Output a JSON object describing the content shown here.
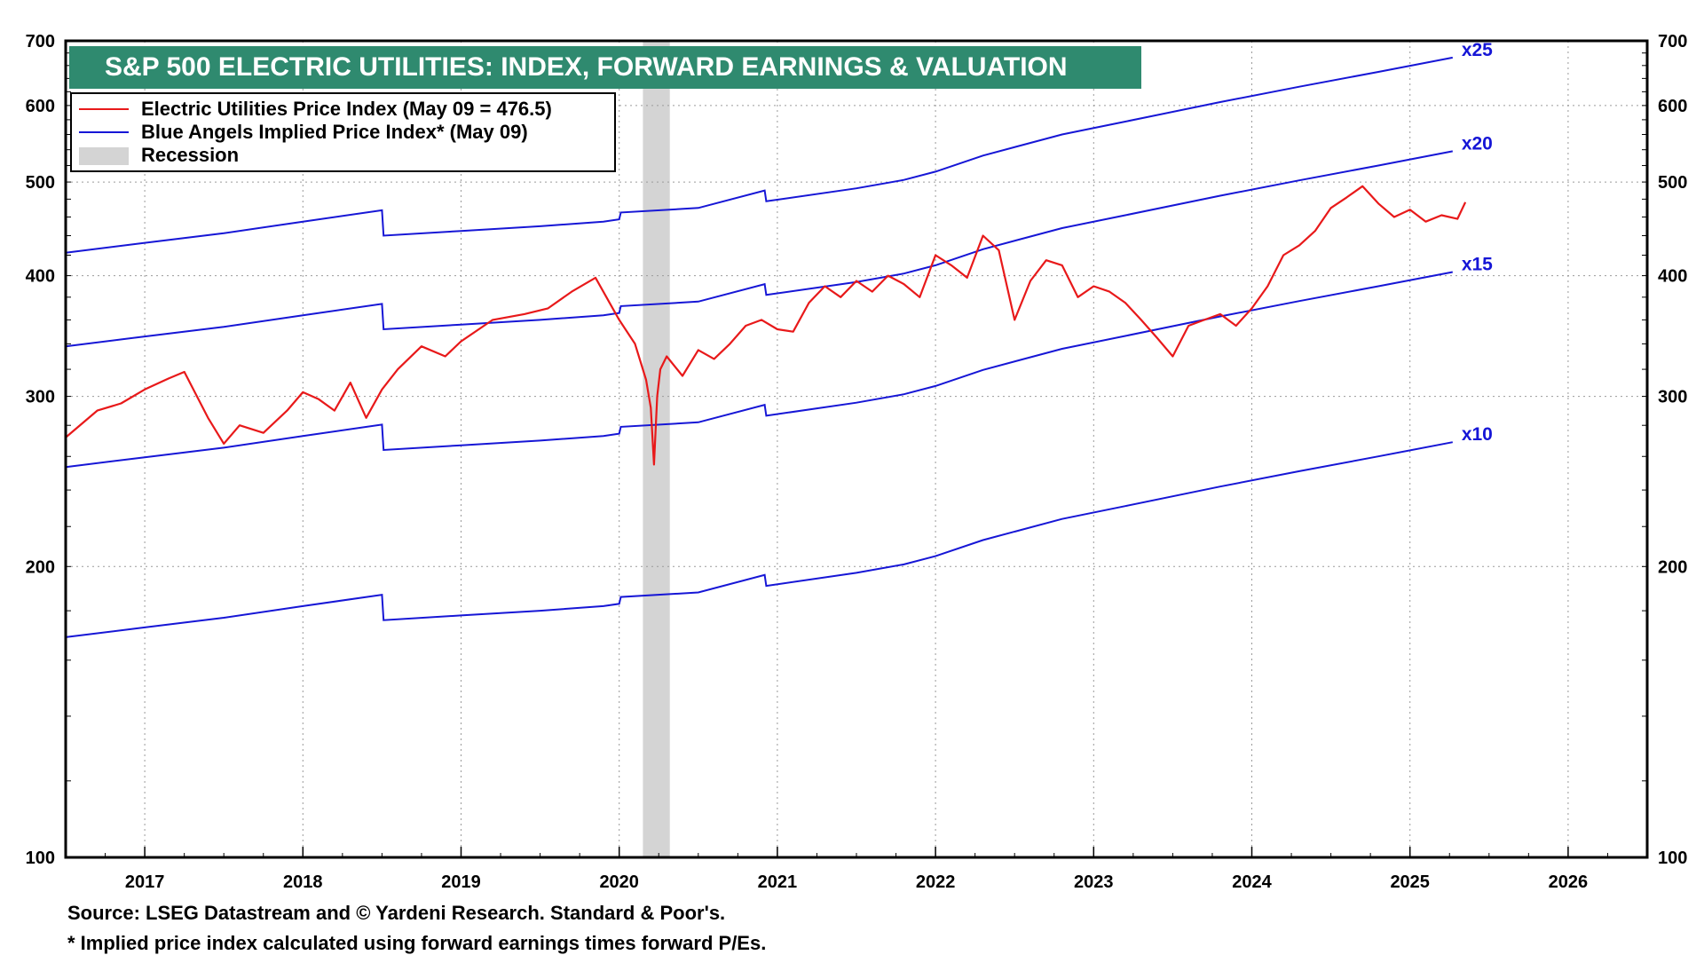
{
  "title": "S&P 500 ELECTRIC UTILITIES: INDEX, FORWARD EARNINGS & VALUATION",
  "legend": [
    {
      "label": "Electric Utilities Price Index (May 09 = 476.5)",
      "color": "#e8191a",
      "kind": "line"
    },
    {
      "label": "Blue Angels Implied Price Index* (May 09)",
      "color": "#1616d6",
      "kind": "line"
    },
    {
      "label": "Recession",
      "color": "#d4d4d4",
      "kind": "band"
    }
  ],
  "footnotes": [
    "Source: LSEG Datastream and © Yardeni Research. Standard & Poor's.",
    "* Implied price index calculated using forward earnings times forward P/Es."
  ],
  "chart_data": {
    "type": "line",
    "title": "S&P 500 ELECTRIC UTILITIES: INDEX, FORWARD EARNINGS & VALUATION",
    "xlabel": "",
    "ylabel": "",
    "y_scale": "log",
    "xlim": [
      2016.5,
      2026.5
    ],
    "ylim": [
      100,
      700
    ],
    "x_tick_labels": [
      "2017",
      "2018",
      "2019",
      "2020",
      "2021",
      "2022",
      "2023",
      "2024",
      "2025",
      "2026"
    ],
    "y_tick_labels": [
      "100",
      "200",
      "300",
      "400",
      "500",
      "600",
      "700"
    ],
    "y_ticks": [
      100,
      200,
      300,
      400,
      500,
      600,
      700
    ],
    "grid": true,
    "legend_position": "top-left",
    "recession": {
      "start": 2020.15,
      "end": 2020.32,
      "label": "Recession"
    },
    "forward_earnings": {
      "x": [
        2016.5,
        2017.0,
        2017.5,
        2018.0,
        2018.5,
        2018.51,
        2019.0,
        2019.5,
        2019.9,
        2020.0,
        2020.01,
        2020.5,
        2020.92,
        2020.93,
        2021.5,
        2021.8,
        2022.0,
        2022.3,
        2022.8,
        2023.2,
        2023.8,
        2024.3,
        2024.8,
        2025.27
      ],
      "y": [
        16.9,
        17.3,
        17.7,
        18.2,
        18.7,
        17.6,
        17.8,
        18.0,
        18.2,
        18.3,
        18.6,
        18.8,
        19.6,
        19.1,
        19.7,
        20.1,
        20.5,
        21.3,
        22.4,
        23.1,
        24.2,
        25.1,
        26.0,
        26.9
      ]
    },
    "multiples": [
      25,
      20,
      15,
      10
    ],
    "series": [
      {
        "name": "Electric Utilities Price Index (May 09 = 476.5)",
        "color": "#e8191a",
        "x": [
          2016.5,
          2016.7,
          2016.85,
          2017.0,
          2017.15,
          2017.25,
          2017.4,
          2017.5,
          2017.6,
          2017.75,
          2017.9,
          2018.0,
          2018.1,
          2018.2,
          2018.3,
          2018.4,
          2018.5,
          2018.6,
          2018.75,
          2018.9,
          2019.0,
          2019.2,
          2019.4,
          2019.55,
          2019.7,
          2019.85,
          2020.0,
          2020.1,
          2020.17,
          2020.2,
          2020.22,
          2020.24,
          2020.26,
          2020.3,
          2020.4,
          2020.5,
          2020.6,
          2020.7,
          2020.8,
          2020.9,
          2021.0,
          2021.1,
          2021.2,
          2021.3,
          2021.4,
          2021.5,
          2021.6,
          2021.7,
          2021.8,
          2021.9,
          2022.0,
          2022.1,
          2022.2,
          2022.3,
          2022.4,
          2022.5,
          2022.6,
          2022.7,
          2022.8,
          2022.9,
          2023.0,
          2023.1,
          2023.2,
          2023.3,
          2023.4,
          2023.5,
          2023.6,
          2023.7,
          2023.8,
          2023.9,
          2024.0,
          2024.1,
          2024.2,
          2024.3,
          2024.4,
          2024.5,
          2024.6,
          2024.7,
          2024.8,
          2024.9,
          2025.0,
          2025.1,
          2025.2,
          2025.3,
          2025.35
        ],
        "y": [
          272,
          290,
          295,
          305,
          313,
          318,
          285,
          268,
          280,
          275,
          290,
          303,
          298,
          290,
          310,
          285,
          305,
          320,
          338,
          330,
          342,
          360,
          365,
          370,
          385,
          398,
          360,
          340,
          312,
          292,
          255,
          300,
          320,
          330,
          315,
          335,
          328,
          340,
          355,
          360,
          352,
          350,
          375,
          390,
          380,
          395,
          385,
          400,
          392,
          380,
          420,
          410,
          398,
          440,
          425,
          360,
          395,
          415,
          410,
          380,
          390,
          385,
          375,
          360,
          345,
          330,
          355,
          360,
          365,
          355,
          370,
          390,
          420,
          430,
          445,
          470,
          482,
          495,
          475,
          460,
          468,
          455,
          462,
          458,
          476.5
        ]
      },
      {
        "name": "Blue Angels Implied Price Index* (May 09)",
        "color": "#1616d6",
        "multiple_labels": [
          "x25",
          "x20",
          "x15",
          "x10"
        ]
      }
    ]
  }
}
